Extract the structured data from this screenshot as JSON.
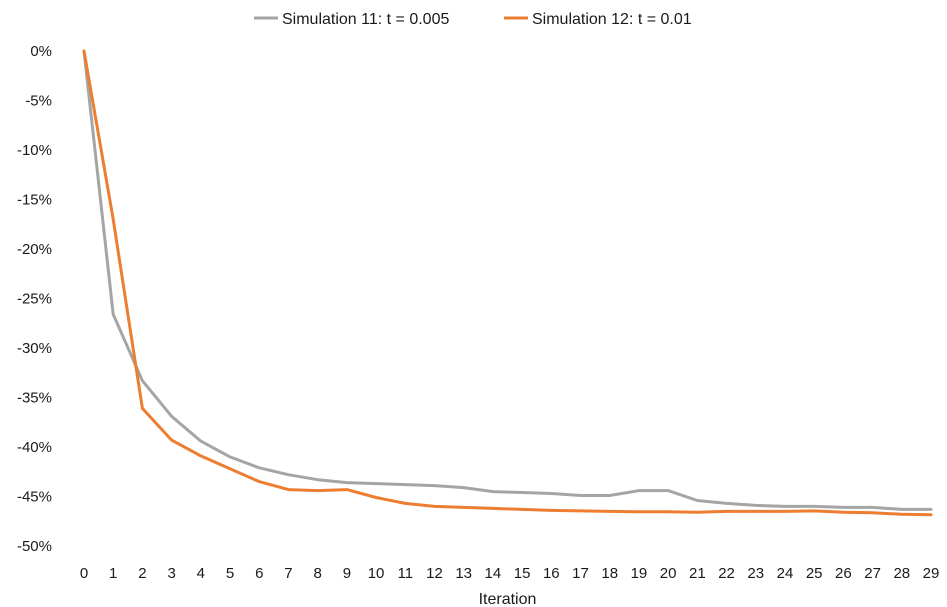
{
  "chart_data": {
    "type": "line",
    "title": "",
    "xlabel": "Iteration",
    "ylabel": "",
    "x": [
      0,
      1,
      2,
      3,
      4,
      5,
      6,
      7,
      8,
      9,
      10,
      11,
      12,
      13,
      14,
      15,
      16,
      17,
      18,
      19,
      20,
      21,
      22,
      23,
      24,
      25,
      26,
      27,
      28,
      29
    ],
    "ylim": [
      -50,
      0
    ],
    "yticks": [
      0,
      -5,
      -10,
      -15,
      -20,
      -25,
      -30,
      -35,
      -40,
      -45,
      -50
    ],
    "ytick_labels": [
      "0%",
      "-5%",
      "-10%",
      "-15%",
      "-20%",
      "-25%",
      "-30%",
      "-35%",
      "-40%",
      "-45%",
      "-50%"
    ],
    "grid": false,
    "legend_position": "top-center",
    "series": [
      {
        "name": "Simulation 11: t = 0.005",
        "color": "#a5a5a5",
        "values": [
          0,
          -26.6,
          -33.3,
          -36.9,
          -39.4,
          -41.0,
          -42.1,
          -42.8,
          -43.3,
          -43.6,
          -43.7,
          -43.8,
          -43.9,
          -44.1,
          -44.5,
          -44.6,
          -44.7,
          -44.9,
          -44.9,
          -44.4,
          -44.4,
          -45.4,
          -45.7,
          -45.9,
          -46.0,
          -46.0,
          -46.1,
          -46.1,
          -46.3,
          -46.3
        ]
      },
      {
        "name": "Simulation 12: t = 0.01",
        "color": "#ed7d31",
        "values": [
          0,
          -17.0,
          -36.1,
          -39.3,
          -40.9,
          -42.2,
          -43.5,
          -44.3,
          -44.4,
          -44.3,
          -45.1,
          -45.7,
          -46.0,
          -46.1,
          -46.2,
          -46.3,
          -46.4,
          -46.45,
          -46.5,
          -46.55,
          -46.55,
          -46.6,
          -46.5,
          -46.5,
          -46.5,
          -46.45,
          -46.6,
          -46.65,
          -46.8,
          -46.85
        ]
      }
    ]
  }
}
